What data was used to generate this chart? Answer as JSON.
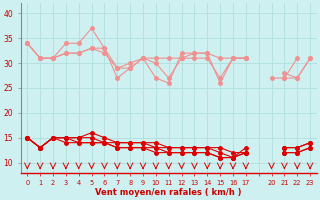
{
  "title": "Vent moyen/en rafales ( km/h )",
  "bg_color": "#cff0f0",
  "grid_color": "#b0dede",
  "x_labels": [
    "0",
    "1",
    "2",
    "3",
    "4",
    "5",
    "6",
    "7",
    "8",
    "9",
    "10",
    "11",
    "12",
    "13",
    "14",
    "15",
    "16",
    "17",
    "",
    "20",
    "21",
    "22",
    "23"
  ],
  "x_indices": [
    0,
    1,
    2,
    3,
    4,
    5,
    6,
    7,
    8,
    9,
    10,
    11,
    12,
    13,
    14,
    15,
    16,
    17,
    18,
    19,
    20,
    21,
    22
  ],
  "x_hours": [
    0,
    1,
    2,
    3,
    4,
    5,
    6,
    7,
    8,
    9,
    10,
    11,
    12,
    13,
    14,
    15,
    16,
    17,
    null,
    20,
    21,
    22,
    23
  ],
  "line_pink1": [
    34,
    31,
    31,
    34,
    34,
    37,
    33,
    27,
    29,
    31,
    27,
    26,
    32,
    32,
    32,
    26,
    31,
    31,
    null,
    27,
    27,
    31,
    null
  ],
  "line_pink2": [
    34,
    31,
    31,
    32,
    32,
    33,
    33,
    29,
    29,
    31,
    31,
    31,
    31,
    32,
    32,
    31,
    31,
    31,
    null,
    null,
    28,
    27,
    31
  ],
  "line_pink3": [
    34,
    31,
    31,
    32,
    32,
    33,
    32,
    29,
    30,
    31,
    30,
    27,
    31,
    31,
    31,
    27,
    31,
    31,
    null,
    null,
    27,
    27,
    31
  ],
  "line_red1": [
    15,
    13,
    15,
    15,
    15,
    16,
    15,
    14,
    14,
    14,
    14,
    13,
    13,
    13,
    13,
    13,
    12,
    12,
    null,
    null,
    13,
    13,
    14
  ],
  "line_red2": [
    15,
    13,
    15,
    15,
    15,
    15,
    14,
    14,
    14,
    14,
    13,
    13,
    13,
    13,
    13,
    12,
    11,
    13,
    null,
    null,
    13,
    13,
    14
  ],
  "line_red3": [
    15,
    13,
    15,
    15,
    14,
    14,
    14,
    13,
    13,
    13,
    13,
    12,
    12,
    12,
    12,
    11,
    11,
    12,
    null,
    null,
    12,
    12,
    13
  ],
  "line_red4": [
    15,
    13,
    15,
    14,
    14,
    14,
    14,
    13,
    13,
    13,
    12,
    12,
    12,
    12,
    12,
    11,
    11,
    12,
    null,
    null,
    12,
    12,
    13
  ],
  "arrow_indices": [
    0,
    1,
    2,
    3,
    4,
    5,
    6,
    7,
    8,
    9,
    10,
    11,
    12,
    13,
    14,
    15,
    16,
    17,
    19,
    20,
    21,
    22
  ],
  "arrow_angles": [
    270,
    315,
    315,
    315,
    270,
    315,
    270,
    270,
    270,
    270,
    270,
    315,
    315,
    315,
    315,
    315,
    315,
    270,
    315,
    315,
    315,
    315
  ],
  "ylim": [
    8,
    42
  ],
  "yticks": [
    10,
    15,
    20,
    25,
    30,
    35,
    40
  ],
  "color_pink": "#f09090",
  "color_red": "#dd0000",
  "color_axis": "#cc0000"
}
